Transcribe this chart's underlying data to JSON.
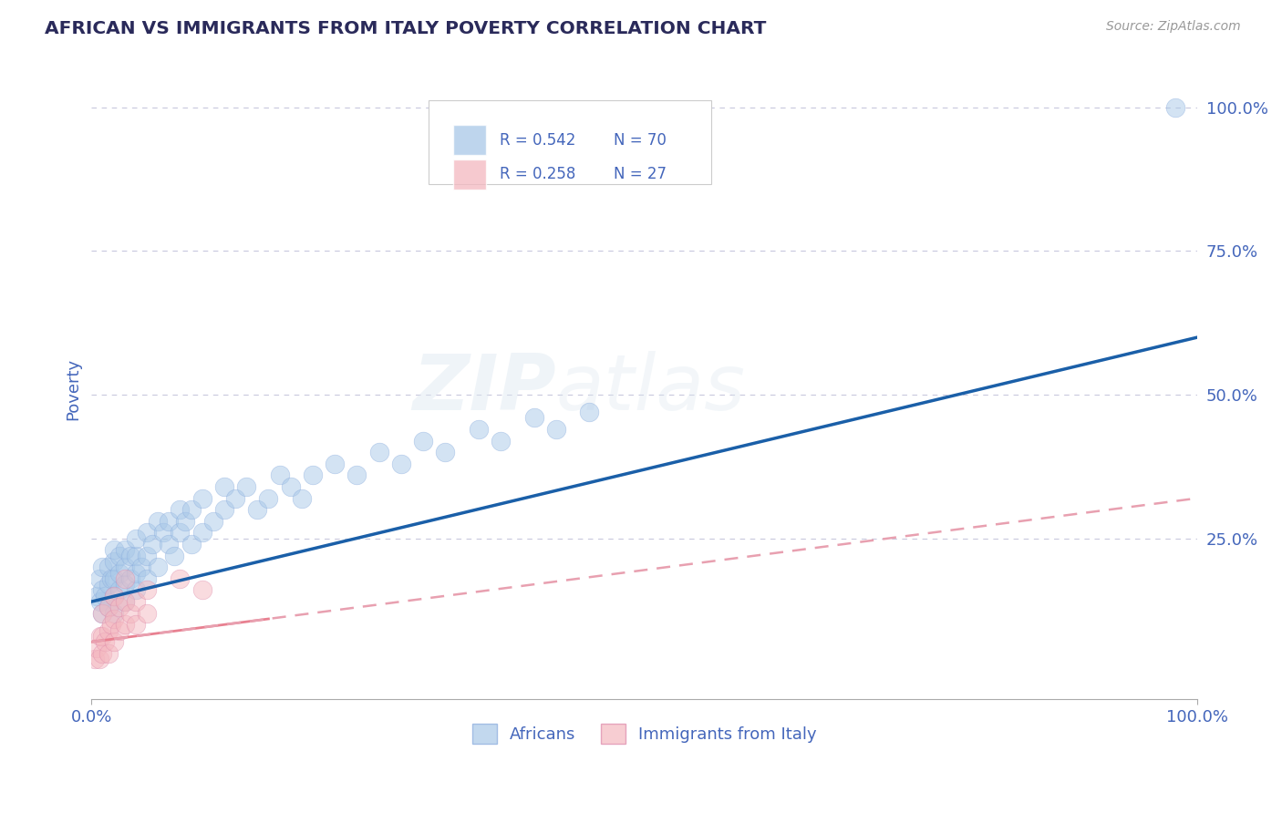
{
  "title": "AFRICAN VS IMMIGRANTS FROM ITALY POVERTY CORRELATION CHART",
  "source_text": "Source: ZipAtlas.com",
  "ylabel": "Poverty",
  "xlim": [
    0,
    1
  ],
  "ylim": [
    -0.03,
    1.05
  ],
  "yticks": [
    0.25,
    0.5,
    0.75,
    1.0
  ],
  "ytick_labels": [
    "25.0%",
    "50.0%",
    "75.0%",
    "100.0%"
  ],
  "legend_r1": "R = 0.542",
  "legend_n1": "N = 70",
  "legend_r2": "R = 0.258",
  "legend_n2": "N = 27",
  "legend_label1": "Africans",
  "legend_label2": "Immigrants from Italy",
  "blue_color": "#a8c8e8",
  "pink_color": "#f4b8c0",
  "blue_line_color": "#1a5fa8",
  "pink_line_color": "#e88090",
  "pink_dashed_color": "#e8a0b0",
  "title_color": "#2a2a5a",
  "axis_label_color": "#4466bb",
  "tick_color": "#4466bb",
  "grid_color": "#c8c8dd",
  "background_color": "#ffffff",
  "africans_x": [
    0.005,
    0.007,
    0.008,
    0.01,
    0.01,
    0.01,
    0.012,
    0.015,
    0.015,
    0.015,
    0.018,
    0.02,
    0.02,
    0.02,
    0.02,
    0.02,
    0.025,
    0.025,
    0.025,
    0.03,
    0.03,
    0.03,
    0.03,
    0.035,
    0.035,
    0.04,
    0.04,
    0.04,
    0.04,
    0.045,
    0.05,
    0.05,
    0.05,
    0.055,
    0.06,
    0.06,
    0.065,
    0.07,
    0.07,
    0.075,
    0.08,
    0.08,
    0.085,
    0.09,
    0.09,
    0.1,
    0.1,
    0.11,
    0.12,
    0.12,
    0.13,
    0.14,
    0.15,
    0.16,
    0.17,
    0.18,
    0.19,
    0.2,
    0.22,
    0.24,
    0.26,
    0.28,
    0.3,
    0.32,
    0.35,
    0.37,
    0.4,
    0.42,
    0.45,
    0.98
  ],
  "africans_y": [
    0.15,
    0.18,
    0.14,
    0.12,
    0.16,
    0.2,
    0.15,
    0.13,
    0.17,
    0.2,
    0.18,
    0.12,
    0.15,
    0.18,
    0.21,
    0.23,
    0.16,
    0.19,
    0.22,
    0.14,
    0.17,
    0.2,
    0.23,
    0.18,
    0.22,
    0.16,
    0.19,
    0.22,
    0.25,
    0.2,
    0.18,
    0.22,
    0.26,
    0.24,
    0.2,
    0.28,
    0.26,
    0.24,
    0.28,
    0.22,
    0.26,
    0.3,
    0.28,
    0.24,
    0.3,
    0.26,
    0.32,
    0.28,
    0.3,
    0.34,
    0.32,
    0.34,
    0.3,
    0.32,
    0.36,
    0.34,
    0.32,
    0.36,
    0.38,
    0.36,
    0.4,
    0.38,
    0.42,
    0.4,
    0.44,
    0.42,
    0.46,
    0.44,
    0.47,
    1.0
  ],
  "italy_x": [
    0.003,
    0.005,
    0.007,
    0.008,
    0.01,
    0.01,
    0.01,
    0.012,
    0.015,
    0.015,
    0.015,
    0.018,
    0.02,
    0.02,
    0.02,
    0.025,
    0.025,
    0.03,
    0.03,
    0.03,
    0.035,
    0.04,
    0.04,
    0.05,
    0.05,
    0.08,
    0.1
  ],
  "italy_y": [
    0.04,
    0.06,
    0.04,
    0.08,
    0.05,
    0.08,
    0.12,
    0.07,
    0.05,
    0.09,
    0.13,
    0.1,
    0.07,
    0.11,
    0.15,
    0.09,
    0.13,
    0.1,
    0.14,
    0.18,
    0.12,
    0.1,
    0.14,
    0.12,
    0.16,
    0.18,
    0.16
  ],
  "trendline_blue_x0": 0.0,
  "trendline_blue_y0": 0.14,
  "trendline_blue_x1": 1.0,
  "trendline_blue_y1": 0.6,
  "trendline_pink_x0": 0.0,
  "trendline_pink_y0": 0.07,
  "trendline_pink_x1": 1.0,
  "trendline_pink_y1": 0.32
}
